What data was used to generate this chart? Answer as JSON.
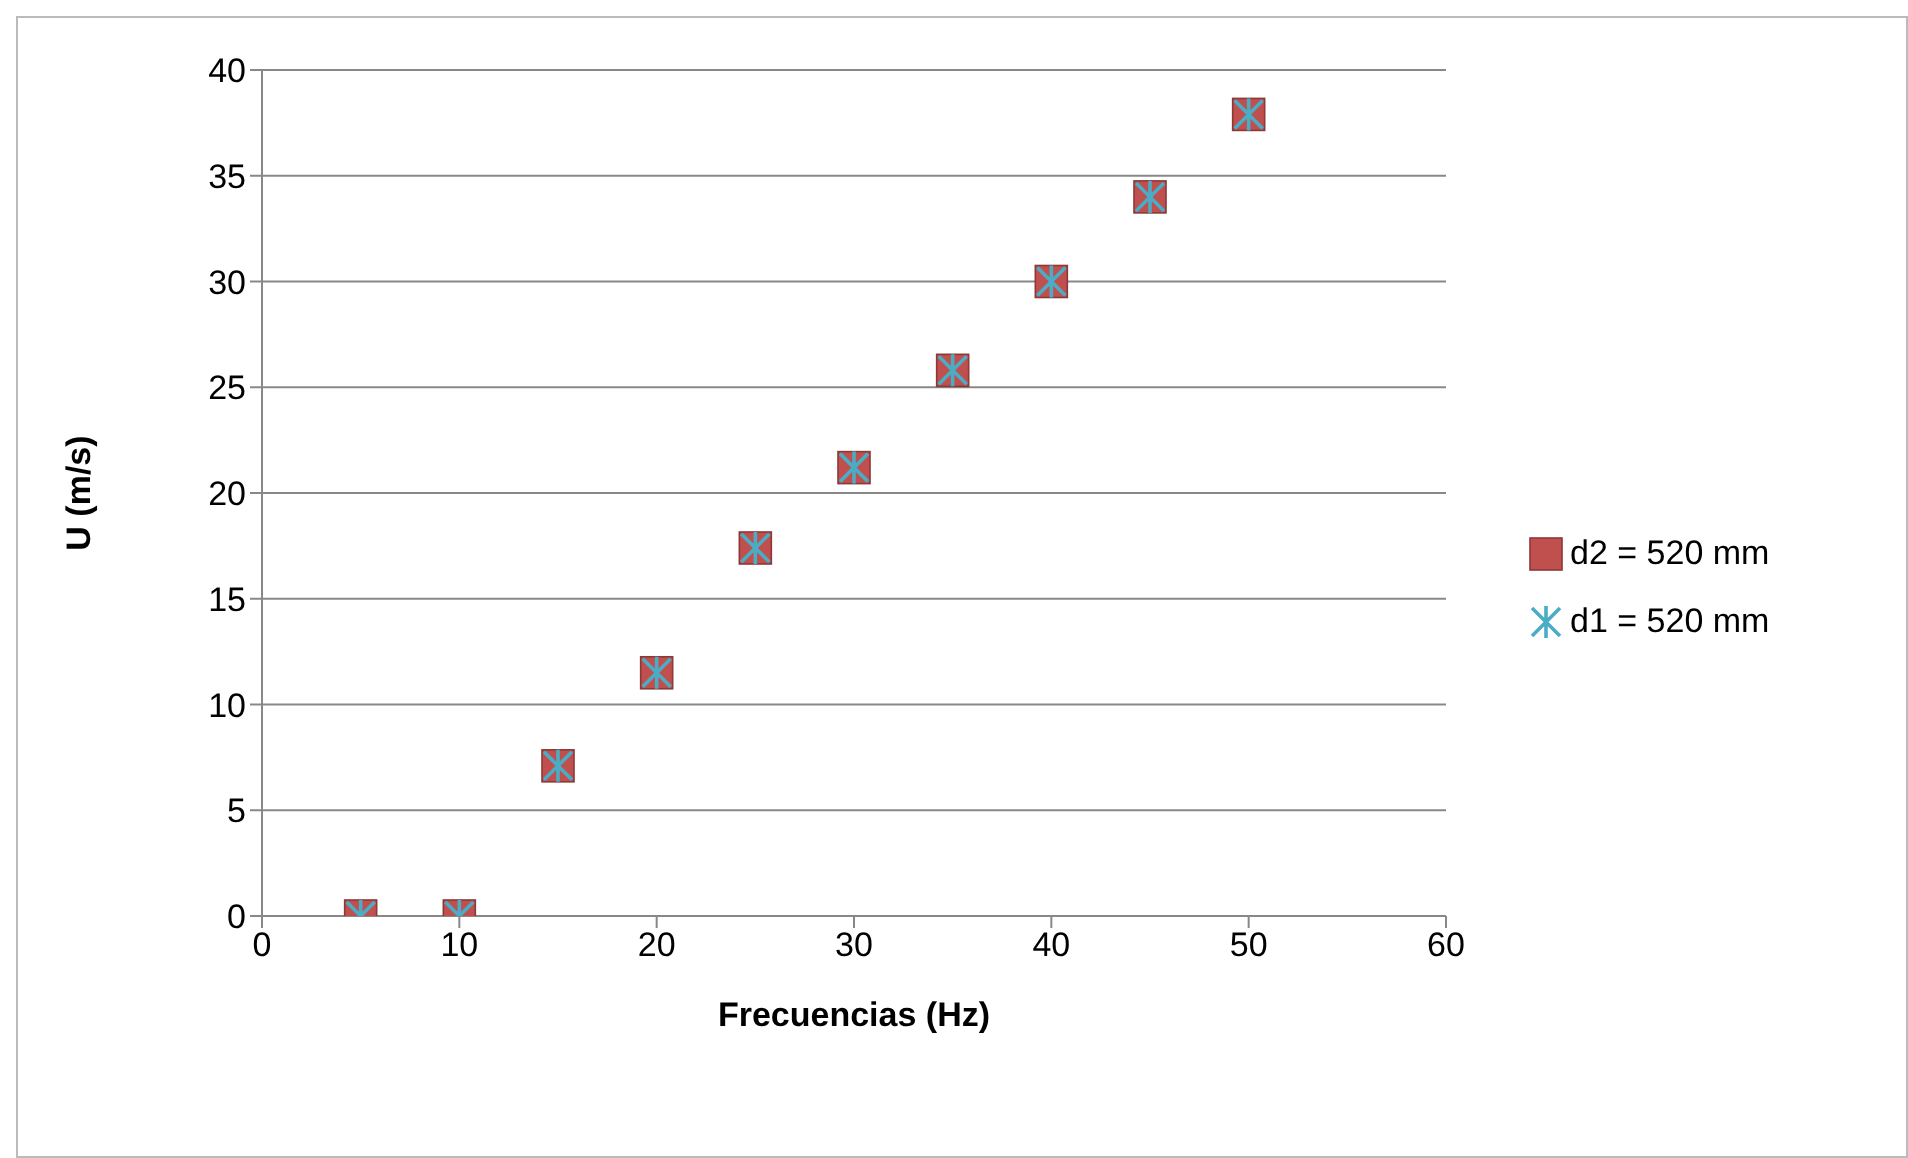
{
  "chart_data": {
    "type": "scatter",
    "xlabel": "Frecuencias (Hz)",
    "ylabel": "U (m/s)",
    "x": [
      5,
      10,
      15,
      20,
      25,
      30,
      35,
      40,
      45,
      50
    ],
    "series": [
      {
        "name": "d2 = 520 mm",
        "color": "#c0504d",
        "marker": "square",
        "values": [
          0,
          0,
          7.1,
          11.5,
          17.4,
          21.2,
          25.8,
          30.0,
          34.0,
          37.9
        ]
      },
      {
        "name": "d1 = 520 mm",
        "color": "#4bacc6",
        "marker": "cross",
        "values": [
          0,
          0,
          7.1,
          11.5,
          17.4,
          21.2,
          25.8,
          30.0,
          34.0,
          37.9
        ]
      }
    ],
    "xlim": [
      0,
      60
    ],
    "xticks": [
      0,
      10,
      20,
      30,
      40,
      50,
      60
    ],
    "ylim": [
      0,
      40
    ],
    "yticks": [
      0,
      5,
      10,
      15,
      20,
      25,
      30,
      35,
      40
    ],
    "grid": "y",
    "legend": "right"
  }
}
